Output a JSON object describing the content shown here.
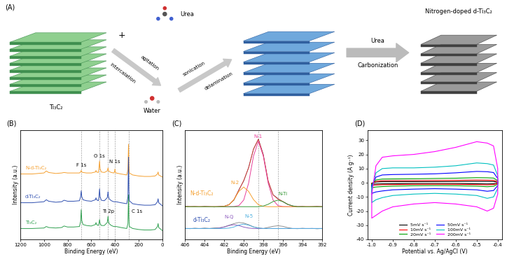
{
  "diagram": {
    "panel": "(A)",
    "start": "Ti₃C₂",
    "plus": "+",
    "reagent": "Urea",
    "byproduct": "Water",
    "step1_above": "agitation",
    "step1_below": "intercalation",
    "step2_above": "sonication",
    "step2_below": "delamination",
    "step3_above": "Urea",
    "step3_below": "Carbonization",
    "product": "Nitrogen-doped d-Ti₃C₂"
  },
  "chart_data": [
    {
      "panel": "(B)",
      "type": "line",
      "xlabel": "Binding Energy (eV)",
      "ylabel": "Intensity (a.u.)",
      "x": [
        1200,
        1100,
        1000,
        980,
        960,
        900,
        850,
        830,
        800,
        750,
        700,
        690,
        685,
        680,
        670,
        640,
        600,
        565,
        560,
        555,
        540,
        535,
        530,
        525,
        515,
        490,
        465,
        460,
        458,
        455,
        450,
        430,
        410,
        403,
        400,
        397,
        390,
        350,
        300,
        290,
        285,
        282,
        278,
        250,
        200,
        150,
        100,
        60,
        40,
        35,
        30,
        0
      ],
      "series": [
        {
          "name": "N-d-Ti₃C₂",
          "color": "#f5a030",
          "values": [
            6.6,
            6.6,
            6.7,
            6.9,
            6.75,
            6.65,
            6.7,
            6.75,
            6.7,
            6.7,
            6.7,
            6.8,
            6.95,
            6.8,
            6.75,
            6.7,
            6.7,
            6.8,
            6.95,
            6.8,
            6.75,
            7.2,
            7.9,
            7.1,
            6.8,
            6.75,
            6.9,
            7.1,
            7.2,
            7.0,
            6.85,
            6.75,
            6.7,
            6.8,
            7.1,
            6.8,
            6.7,
            6.6,
            6.5,
            7.0,
            9.6,
            7.5,
            6.7,
            6.5,
            6.4,
            6.35,
            6.35,
            6.4,
            6.6,
            6.8,
            6.5,
            6.3
          ]
        },
        {
          "name": "d-Ti₃C₂",
          "color": "#3050b0",
          "values": [
            3.7,
            3.7,
            3.8,
            4.0,
            3.85,
            3.75,
            3.8,
            3.95,
            3.85,
            3.85,
            3.9,
            4.3,
            4.9,
            4.3,
            4.0,
            3.9,
            3.85,
            4.0,
            4.2,
            4.0,
            3.9,
            4.3,
            5.1,
            4.3,
            3.95,
            3.9,
            4.2,
            4.6,
            4.8,
            4.4,
            4.1,
            3.9,
            3.8,
            3.8,
            3.8,
            3.8,
            3.8,
            3.7,
            3.6,
            4.3,
            8.3,
            5.0,
            3.9,
            3.6,
            3.5,
            3.45,
            3.45,
            3.5,
            3.8,
            4.1,
            3.7,
            3.4
          ]
        },
        {
          "name": "Ti₃C₂",
          "color": "#30a050",
          "values": [
            1.1,
            1.1,
            1.15,
            1.3,
            1.2,
            1.15,
            1.2,
            1.35,
            1.25,
            1.25,
            1.3,
            1.8,
            3.0,
            1.9,
            1.5,
            1.4,
            1.35,
            1.5,
            1.7,
            1.5,
            1.4,
            1.6,
            2.0,
            1.6,
            1.4,
            1.4,
            1.7,
            2.1,
            2.3,
            1.9,
            1.6,
            1.4,
            1.3,
            1.3,
            1.3,
            1.3,
            1.3,
            1.2,
            1.1,
            1.6,
            4.5,
            2.2,
            1.3,
            1.1,
            1.0,
            0.95,
            0.95,
            1.0,
            1.3,
            1.6,
            1.2,
            0.9
          ]
        }
      ],
      "annotations": [
        {
          "text": "F 1s",
          "x": 685
        },
        {
          "text": "O 1s",
          "x": 530
        },
        {
          "text": "N 1s",
          "x": 400
        },
        {
          "text": "Ti 2p",
          "x": 458
        },
        {
          "text": "C 1s",
          "x": 285
        }
      ],
      "xlim": [
        1200,
        0
      ],
      "xticks": [
        1200,
        1000,
        800,
        600,
        400,
        200,
        0
      ],
      "ylim": [
        0,
        11
      ],
      "yticks": [],
      "tick_labels": "x"
    },
    {
      "panel": "(C)",
      "type": "line",
      "xlabel": "Binding Energy (eV)",
      "ylabel": "Intensity (a.u.)",
      "x": [
        406,
        405.5,
        405,
        404.5,
        404,
        403.5,
        403,
        402.5,
        402,
        401.5,
        401,
        400.5,
        400,
        399.5,
        399,
        398.5,
        398,
        397.5,
        397,
        396.5,
        396,
        395.5,
        395,
        394.5,
        394,
        393.5,
        393,
        392.5,
        392
      ],
      "series": [
        {
          "color": "#606060",
          "values": [
            3.05,
            3.0,
            3.02,
            2.98,
            3.03,
            3.0,
            2.97,
            3.02,
            3.05,
            3.2,
            3.6,
            4.55,
            5.35,
            6.6,
            8.25,
            9.2,
            7.8,
            5.3,
            4.1,
            3.75,
            3.45,
            3.2,
            3.08,
            3.0,
            3.02,
            2.98,
            3.0,
            3.03,
            2.99
          ]
        },
        {
          "color": "#e03030",
          "values": [
            3.0,
            3.0,
            3.0,
            3.0,
            3.0,
            3.0,
            3.0,
            3.0,
            3.03,
            3.18,
            3.66,
            4.5,
            5.41,
            6.56,
            8.3,
            9.18,
            7.74,
            5.38,
            4.08,
            3.7,
            3.48,
            3.22,
            3.06,
            3.0,
            3.0,
            3.0,
            3.0,
            3.0,
            3.0
          ]
        },
        {
          "name": "N-1",
          "color": "#e8409a",
          "values": [
            3.0,
            3.0,
            3.0,
            3.0,
            3.0,
            3.0,
            3.0,
            3.0,
            3.0,
            3.0,
            3.01,
            3.1,
            3.61,
            5.16,
            7.65,
            9.0,
            7.65,
            5.16,
            3.61,
            3.1,
            3.01,
            3.0,
            3.0,
            3.0,
            3.0,
            3.0,
            3.0,
            3.0,
            3.0
          ]
        },
        {
          "name": "N-2",
          "color": "#f5a030",
          "values": [
            3.0,
            3.0,
            3.0,
            3.0,
            3.0,
            3.0,
            3.0,
            3.0,
            3.03,
            3.18,
            3.65,
            4.4,
            4.8,
            4.4,
            3.65,
            3.18,
            3.03,
            3.0,
            3.0,
            3.0,
            3.0,
            3.0,
            3.0,
            3.0,
            3.0,
            3.0,
            3.0,
            3.0,
            3.0
          ]
        },
        {
          "name": "N-Ti",
          "color": "#3a9a3a",
          "values": [
            3.0,
            3.0,
            3.0,
            3.0,
            3.0,
            3.0,
            3.0,
            3.0,
            3.0,
            3.0,
            3.0,
            3.0,
            3.0,
            3.0,
            3.0,
            3.0,
            3.06,
            3.22,
            3.47,
            3.6,
            3.47,
            3.22,
            3.06,
            3.0,
            3.0,
            3.0,
            3.0,
            3.0,
            3.0
          ]
        },
        {
          "color": "#808080",
          "values": [
            1.02,
            0.98,
            1.03,
            0.99,
            1.04,
            1.0,
            1.05,
            1.06,
            1.15,
            1.3,
            1.45,
            1.55,
            1.5,
            1.35,
            1.15,
            1.05,
            1.0,
            1.1,
            1.2,
            1.25,
            1.2,
            1.08,
            1.0,
            0.98,
            1.02,
            0.99,
            1.01,
            0.97,
            1.0
          ]
        },
        {
          "name": "N-Q",
          "color": "#9060c0",
          "values": [
            1.0,
            1.0,
            1.0,
            1.0,
            1.0,
            1.0,
            1.0,
            1.04,
            1.13,
            1.27,
            1.35,
            1.27,
            1.13,
            1.04,
            1.0,
            1.0,
            1.0,
            1.0,
            1.0,
            1.0,
            1.0,
            1.0,
            1.0,
            1.0,
            1.0,
            1.0,
            1.0,
            1.0,
            1.0
          ]
        },
        {
          "name": "N-5",
          "color": "#50b0e0",
          "values": [
            1.0,
            1.0,
            1.0,
            1.0,
            1.0,
            1.0,
            1.0,
            1.0,
            1.0,
            1.04,
            1.14,
            1.31,
            1.4,
            1.31,
            1.14,
            1.04,
            1.0,
            1.0,
            1.0,
            1.0,
            1.0,
            1.0,
            1.0,
            1.0,
            1.0,
            1.0,
            1.0,
            1.0,
            1.0
          ]
        }
      ],
      "annotations": [
        {
          "text": "N-d-Ti₃C₂",
          "color": "#f5a030"
        },
        {
          "text": "d-Ti₃C₂",
          "color": "#3050b0"
        }
      ],
      "vlines": [
        398.5,
        396.5
      ],
      "xlim": [
        406,
        392
      ],
      "xticks": [
        406,
        404,
        402,
        400,
        398,
        396,
        394,
        392
      ],
      "ylim": [
        0,
        10
      ],
      "yticks": [],
      "tick_labels": "x"
    },
    {
      "panel": "(D)",
      "type": "line",
      "xlabel": "Potential vs. Ag/AgCl (V)",
      "ylabel": "Current density (A g⁻¹)",
      "x": [
        -1.0,
        -0.98,
        -0.95,
        -0.9,
        -0.8,
        -0.7,
        -0.6,
        -0.5,
        -0.45,
        -0.42,
        -0.4,
        -0.4,
        -0.42,
        -0.45,
        -0.5,
        -0.6,
        -0.7,
        -0.8,
        -0.9,
        -0.95,
        -0.98,
        -1.0,
        -1.0
      ],
      "series": [
        {
          "name": "5mV s⁻¹",
          "color": "#000000",
          "values": [
            -0.3,
            0.5,
            0.7,
            0.75,
            0.75,
            0.8,
            0.85,
            0.95,
            0.9,
            0.85,
            0.4,
            -0.3,
            -0.7,
            -0.8,
            -0.7,
            -0.6,
            -0.55,
            -0.6,
            -0.7,
            -0.75,
            -0.85,
            -0.95,
            -0.3
          ]
        },
        {
          "name": "10mV s⁻¹",
          "color": "#ff0000",
          "values": [
            -0.5,
            1,
            1.4,
            1.5,
            1.5,
            1.6,
            1.7,
            1.9,
            1.8,
            1.7,
            0.8,
            -0.5,
            -1.3,
            -1.5,
            -1.3,
            -1.1,
            -1.05,
            -1.1,
            -1.3,
            -1.4,
            -1.6,
            -1.8,
            -0.5
          ]
        },
        {
          "name": "20mV s⁻¹",
          "color": "#00a000",
          "values": [
            -1,
            2,
            2.6,
            2.7,
            2.8,
            3,
            3.2,
            3.6,
            3.5,
            3.3,
            1.5,
            -1,
            -2.5,
            -2.8,
            -2.4,
            -2.1,
            -2,
            -2.1,
            -2.4,
            -2.7,
            -3,
            -3.4,
            -1
          ]
        },
        {
          "name": "50mV s⁻¹",
          "color": "#0000ff",
          "values": [
            -2,
            4,
            5.5,
            5.8,
            6,
            6.3,
            7,
            8,
            7.8,
            7.2,
            3,
            -2,
            -5.5,
            -6,
            -5,
            -4.5,
            -4.2,
            -4.5,
            -5,
            -5.8,
            -6.5,
            -7.5,
            -2
          ]
        },
        {
          "name": "100mV s⁻¹",
          "color": "#00c0c0",
          "values": [
            -4,
            7,
            10,
            10.5,
            10.5,
            11,
            12,
            14,
            13.5,
            12.5,
            5,
            -4,
            -10,
            -11,
            -9,
            -8,
            -7.5,
            -8,
            -9,
            -10.5,
            -12,
            -14,
            -4
          ]
        },
        {
          "name": "200mV s⁻¹",
          "color": "#ff00ff",
          "values": [
            -8,
            12,
            18,
            19,
            20,
            22,
            25,
            29,
            28,
            26,
            10,
            -8,
            -18,
            -20,
            -17,
            -15,
            -14,
            -15,
            -17,
            -20,
            -23,
            -25,
            -8
          ]
        }
      ],
      "legend": "lower center",
      "xlim": [
        -1.02,
        -0.38
      ],
      "xticks": [
        -1.0,
        -0.9,
        -0.8,
        -0.7,
        -0.6,
        -0.5,
        -0.4
      ],
      "ylim": [
        -40,
        37
      ],
      "yticks": [
        -40,
        -30,
        -20,
        -10,
        0,
        10,
        20,
        30
      ]
    }
  ]
}
